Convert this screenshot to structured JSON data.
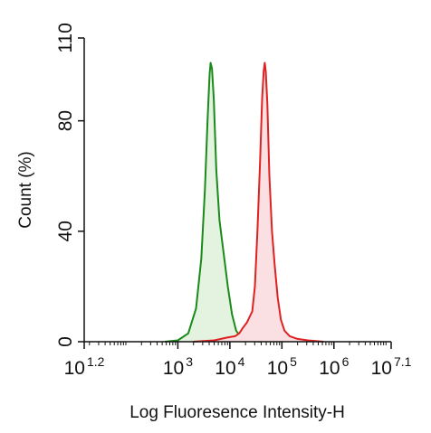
{
  "chart_data": {
    "type": "area",
    "xlabel": "Log Fluoresence Intensity-H",
    "ylabel": "Count (%)",
    "x_scale": "log10",
    "xlim": [
      1.2,
      7.1
    ],
    "ylim": [
      0,
      110
    ],
    "x_ticks": [
      {
        "base": "10",
        "exp": "1.2",
        "value": 1.2
      },
      {
        "base": "10",
        "exp": "3",
        "value": 3
      },
      {
        "base": "10",
        "exp": "4",
        "value": 4
      },
      {
        "base": "10",
        "exp": "5",
        "value": 5
      },
      {
        "base": "10",
        "exp": "6",
        "value": 6
      },
      {
        "base": "10",
        "exp": "7.1",
        "value": 7.1
      }
    ],
    "y_ticks": [
      "0",
      "40",
      "80",
      "110"
    ],
    "grid": false,
    "series": [
      {
        "color": "#1a8a1a",
        "fill": "#e4f2e0",
        "points": [
          [
            2.75,
            0
          ],
          [
            3.0,
            0.5
          ],
          [
            3.2,
            3
          ],
          [
            3.35,
            12
          ],
          [
            3.45,
            30
          ],
          [
            3.52,
            55
          ],
          [
            3.57,
            80
          ],
          [
            3.61,
            97
          ],
          [
            3.63,
            101
          ],
          [
            3.655,
            99
          ],
          [
            3.69,
            88
          ],
          [
            3.74,
            62
          ],
          [
            3.8,
            44
          ],
          [
            3.88,
            32
          ],
          [
            3.96,
            20
          ],
          [
            4.04,
            10
          ],
          [
            4.12,
            4
          ],
          [
            4.2,
            2
          ],
          [
            4.3,
            1
          ],
          [
            4.4,
            0.3
          ],
          [
            4.6,
            0
          ]
        ]
      },
      {
        "color": "#dd2222",
        "fill": "#fbe0e3",
        "points": [
          [
            3.3,
            0
          ],
          [
            3.7,
            0.5
          ],
          [
            3.95,
            1.5
          ],
          [
            4.1,
            2
          ],
          [
            4.18,
            3
          ],
          [
            4.25,
            5
          ],
          [
            4.33,
            7
          ],
          [
            4.38,
            9
          ],
          [
            4.43,
            11
          ],
          [
            4.48,
            20
          ],
          [
            4.53,
            40
          ],
          [
            4.58,
            65
          ],
          [
            4.62,
            88
          ],
          [
            4.65,
            98
          ],
          [
            4.67,
            101
          ],
          [
            4.69,
            98
          ],
          [
            4.72,
            86
          ],
          [
            4.76,
            60
          ],
          [
            4.81,
            40
          ],
          [
            4.86,
            28
          ],
          [
            4.92,
            16
          ],
          [
            4.98,
            8
          ],
          [
            5.05,
            4
          ],
          [
            5.15,
            2
          ],
          [
            5.3,
            1
          ],
          [
            5.5,
            0.5
          ],
          [
            5.8,
            0
          ]
        ]
      }
    ]
  }
}
